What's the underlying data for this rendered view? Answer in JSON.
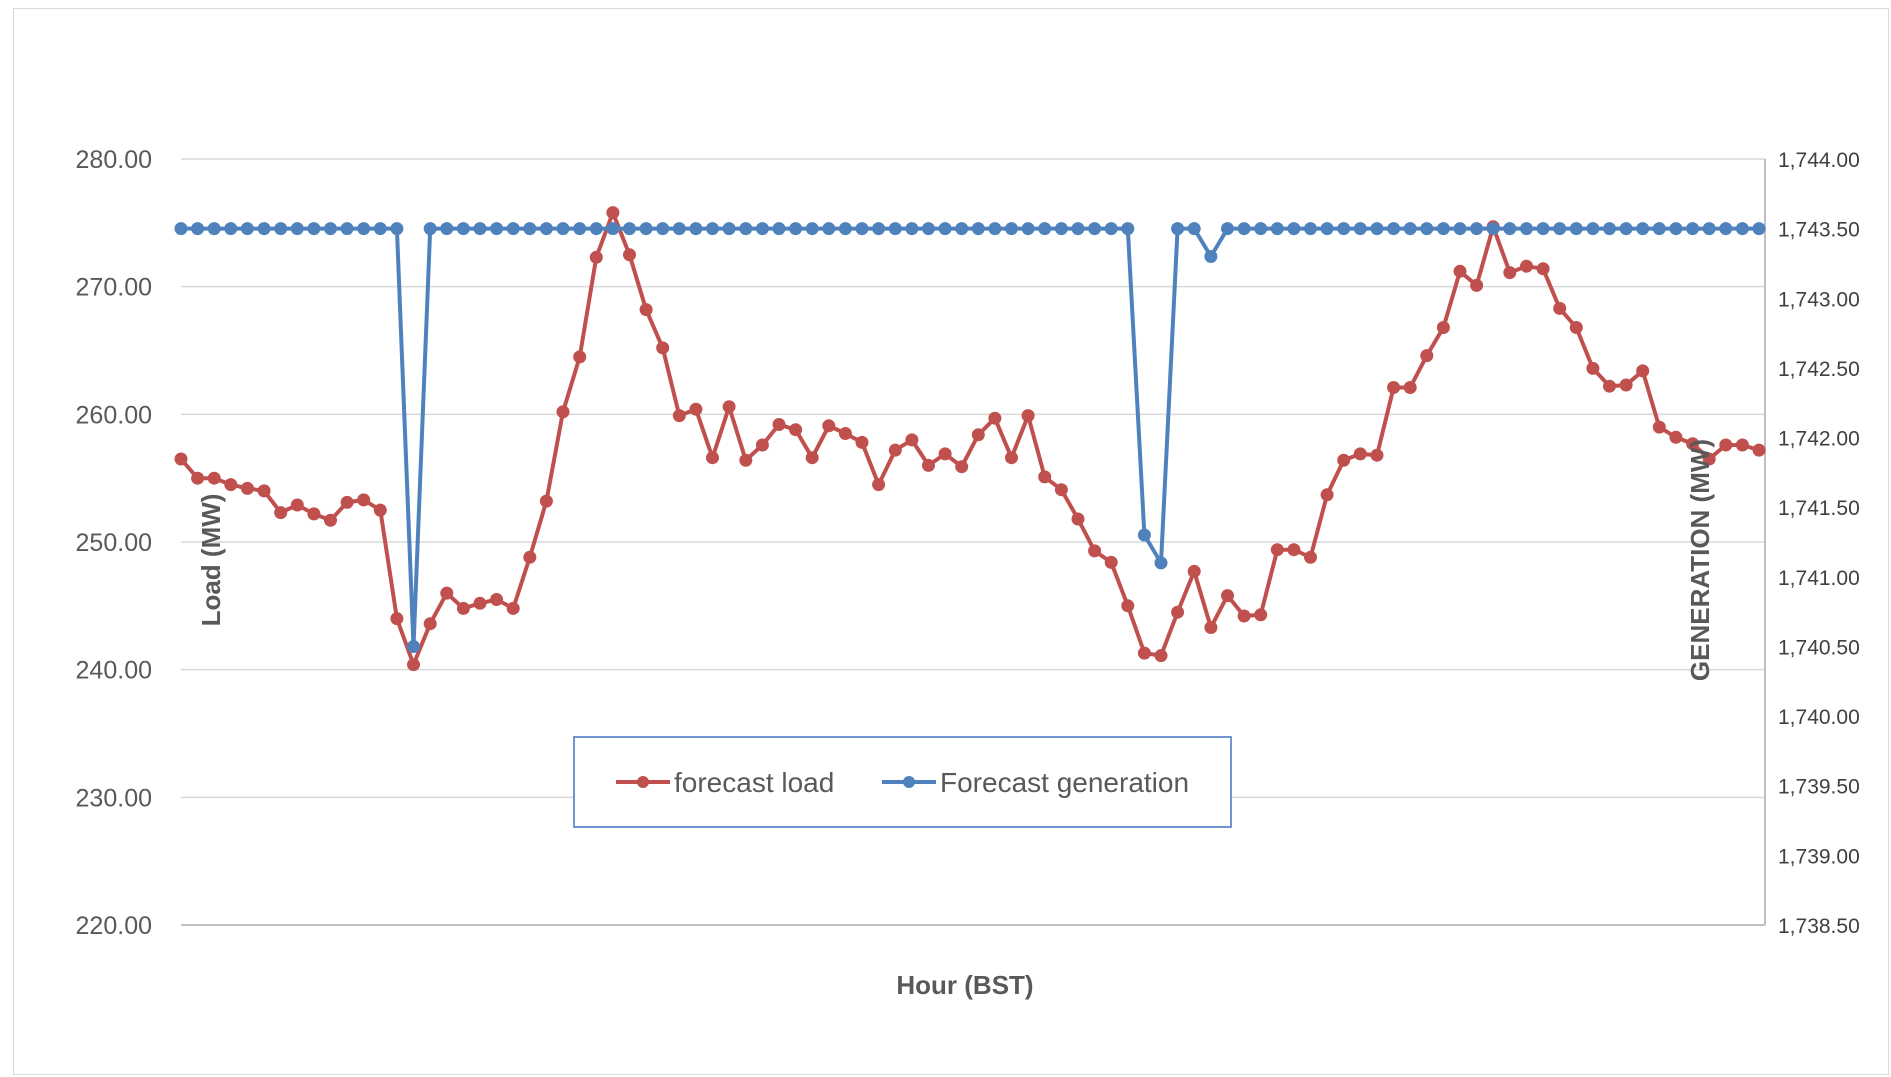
{
  "chart_data": {
    "type": "line",
    "xlabel": "Hour (BST)",
    "ylabel_left": "Load (MW)",
    "ylabel_right": "GENERATION (MW)",
    "ylim_left": [
      220,
      280
    ],
    "ylim_right": [
      1738.5,
      1744.0
    ],
    "yticks_left": [
      "280.00",
      "270.00",
      "260.00",
      "250.00",
      "240.00",
      "230.00",
      "220.00"
    ],
    "yticks_right": [
      "1,744.00",
      "1,743.50",
      "1,743.00",
      "1,742.50",
      "1,742.00",
      "1,741.50",
      "1,741.00",
      "1,740.50",
      "1,740.00",
      "1,739.50",
      "1,739.00",
      "1,738.50"
    ],
    "legend_position": "center-bottom",
    "colors": {
      "load": "#c0504d",
      "generation": "#4f81bd"
    },
    "series": [
      {
        "name": "forecast load",
        "axis": "left",
        "values": [
          256.5,
          255.0,
          255.0,
          254.5,
          254.2,
          254.0,
          252.3,
          252.9,
          252.2,
          251.7,
          253.1,
          253.3,
          252.5,
          244.0,
          240.4,
          243.6,
          246.0,
          244.8,
          245.2,
          245.5,
          244.8,
          248.8,
          253.2,
          260.2,
          264.5,
          272.3,
          275.8,
          272.5,
          268.2,
          265.2,
          259.9,
          260.4,
          256.6,
          260.6,
          256.4,
          257.6,
          259.2,
          258.8,
          256.6,
          259.1,
          258.5,
          257.8,
          254.5,
          257.2,
          258.0,
          256.0,
          256.9,
          255.9,
          258.4,
          259.7,
          256.6,
          259.9,
          255.1,
          254.1,
          251.8,
          249.3,
          248.4,
          245.0,
          241.3,
          241.1,
          244.5,
          247.7,
          243.3,
          245.8,
          244.2,
          244.3,
          249.4,
          249.4,
          248.8,
          253.7,
          256.4,
          256.9,
          256.8,
          262.1,
          262.1,
          264.6,
          266.8,
          271.2,
          270.1,
          274.7,
          271.1,
          271.6,
          271.4,
          268.3,
          266.8,
          263.6,
          262.2,
          262.3,
          263.4,
          259.0,
          258.2,
          257.7,
          256.5,
          257.6,
          257.6,
          257.2
        ]
      },
      {
        "name": "Forecast generation",
        "axis": "right",
        "values": [
          1743.5,
          1743.5,
          1743.5,
          1743.5,
          1743.5,
          1743.5,
          1743.5,
          1743.5,
          1743.5,
          1743.5,
          1743.5,
          1743.5,
          1743.5,
          1743.5,
          1740.5,
          1743.5,
          1743.5,
          1743.5,
          1743.5,
          1743.5,
          1743.5,
          1743.5,
          1743.5,
          1743.5,
          1743.5,
          1743.5,
          1743.5,
          1743.5,
          1743.5,
          1743.5,
          1743.5,
          1743.5,
          1743.5,
          1743.5,
          1743.5,
          1743.5,
          1743.5,
          1743.5,
          1743.5,
          1743.5,
          1743.5,
          1743.5,
          1743.5,
          1743.5,
          1743.5,
          1743.5,
          1743.5,
          1743.5,
          1743.5,
          1743.5,
          1743.5,
          1743.5,
          1743.5,
          1743.5,
          1743.5,
          1743.5,
          1743.5,
          1743.5,
          1741.3,
          1741.1,
          1743.5,
          1743.5,
          1743.3,
          1743.5,
          1743.5,
          1743.5,
          1743.5,
          1743.5,
          1743.5,
          1743.5,
          1743.5,
          1743.5,
          1743.5,
          1743.5,
          1743.5,
          1743.5,
          1743.5,
          1743.5,
          1743.5,
          1743.5,
          1743.5,
          1743.5,
          1743.5,
          1743.5,
          1743.5,
          1743.5,
          1743.5,
          1743.5,
          1743.5,
          1743.5,
          1743.5,
          1743.5,
          1743.5,
          1743.5,
          1743.5,
          1743.5
        ]
      }
    ]
  }
}
